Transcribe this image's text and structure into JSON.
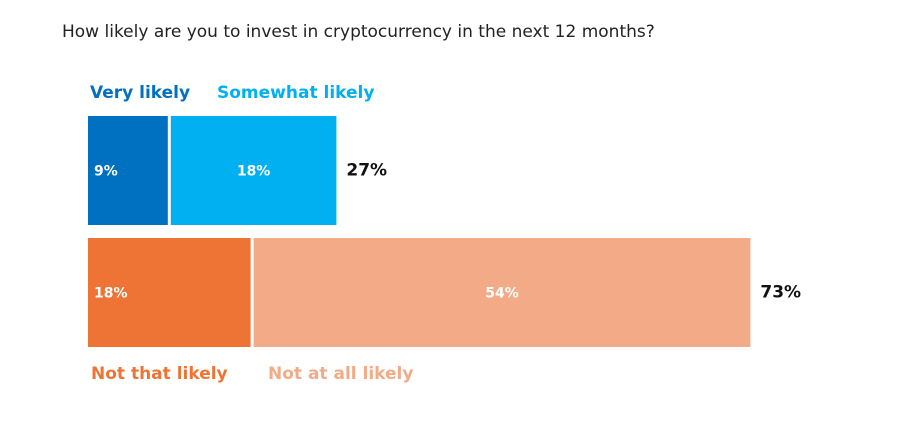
{
  "chart_data": {
    "type": "bar",
    "orientation": "horizontal",
    "stacked": true,
    "title": "How likely are you to invest in cryptocurrency in the next 12 months?",
    "bars": [
      {
        "total_label": "27%",
        "total": 27,
        "segments": [
          {
            "name": "Very likely",
            "value": 9,
            "label": "9%",
            "color": "#0070c0",
            "label_align": "start"
          },
          {
            "name": "Somewhat likely",
            "value": 18,
            "label": "18%",
            "color": "#00b0f0",
            "label_align": "middle"
          }
        ]
      },
      {
        "total_label": "73%",
        "total": 73,
        "segments": [
          {
            "name": "Not that likely",
            "value": 18,
            "label": "18%",
            "color": "#ed7435",
            "label_align": "start"
          },
          {
            "name": "Not at all likely",
            "value": 54,
            "label": "54%",
            "color": "#f2ab86",
            "label_align": "middle"
          }
        ]
      }
    ],
    "legend": {
      "top": [
        {
          "label": "Very likely",
          "color": "#0070c0"
        },
        {
          "label": "Somewhat likely",
          "color": "#00b0f0"
        }
      ],
      "bottom": [
        {
          "label": "Not that likely",
          "color": "#ed7435"
        },
        {
          "label": "Not at all likely",
          "color": "#f2ab86"
        }
      ]
    },
    "grid": false
  }
}
